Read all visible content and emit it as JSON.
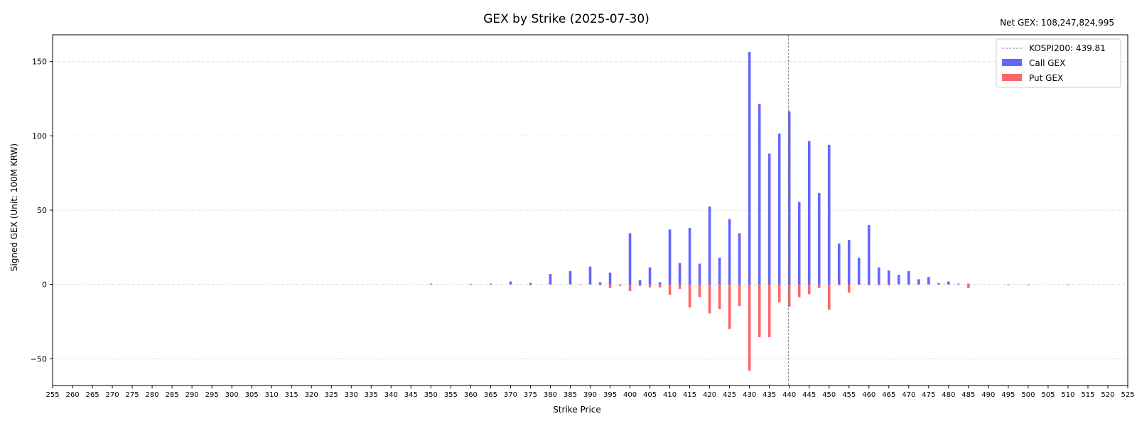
{
  "chart_data": {
    "type": "bar",
    "title": "GEX by Strike (2025-07-30)",
    "annotation": "Net GEX: 108,247,824,995",
    "xlabel": "Strike Price",
    "ylabel": "Signed GEX (Unit: 100M KRW)",
    "xlim": [
      255,
      525
    ],
    "ylim": [
      -68,
      168
    ],
    "x_ticks": [
      255,
      260,
      265,
      270,
      275,
      280,
      285,
      290,
      295,
      300,
      305,
      310,
      315,
      320,
      325,
      330,
      335,
      340,
      345,
      350,
      355,
      360,
      365,
      370,
      375,
      380,
      385,
      390,
      395,
      400,
      405,
      410,
      415,
      420,
      425,
      430,
      435,
      440,
      445,
      450,
      455,
      460,
      465,
      470,
      475,
      480,
      485,
      490,
      495,
      500,
      505,
      510,
      515,
      520,
      525
    ],
    "y_ticks": [
      -50,
      0,
      50,
      100,
      150
    ],
    "y_tick_labels": [
      "−50",
      "0",
      "50",
      "100",
      "150"
    ],
    "grid": "horizontal dashed",
    "legend_position": "top-right",
    "spot_line": {
      "label": "KOSPI200: 439.81",
      "value": 439.81,
      "color": "#808080"
    },
    "series": [
      {
        "name": "Call GEX",
        "color": "#6666ff",
        "points": [
          [
            350,
            0.5
          ],
          [
            360,
            0.4
          ],
          [
            365,
            0.5
          ],
          [
            370,
            2
          ],
          [
            375,
            1
          ],
          [
            380,
            7
          ],
          [
            385,
            9
          ],
          [
            390,
            12
          ],
          [
            392.5,
            1.5
          ],
          [
            395,
            8
          ],
          [
            400,
            34.5
          ],
          [
            402.5,
            3
          ],
          [
            405,
            11.5
          ],
          [
            407.5,
            1.5
          ],
          [
            410,
            37
          ],
          [
            412.5,
            14.5
          ],
          [
            415,
            38
          ],
          [
            417.5,
            14
          ],
          [
            420,
            52.5
          ],
          [
            422.5,
            18
          ],
          [
            425,
            44
          ],
          [
            427.5,
            34.5
          ],
          [
            430,
            156.5
          ],
          [
            432.5,
            121.5
          ],
          [
            435,
            88
          ],
          [
            437.5,
            101.5
          ],
          [
            440,
            116.5
          ],
          [
            442.5,
            55.5
          ],
          [
            445,
            96.5
          ],
          [
            447.5,
            61.5
          ],
          [
            450,
            94
          ],
          [
            452.5,
            27.5
          ],
          [
            455,
            30
          ],
          [
            457.5,
            18
          ],
          [
            460,
            40
          ],
          [
            462.5,
            11.5
          ],
          [
            465,
            9.5
          ],
          [
            467.5,
            6.5
          ],
          [
            470,
            9
          ],
          [
            472.5,
            3.5
          ],
          [
            475,
            5
          ],
          [
            477.5,
            1
          ],
          [
            480,
            2
          ],
          [
            482.5,
            0.5
          ],
          [
            485,
            0.5
          ]
        ]
      },
      {
        "name": "Put GEX",
        "color": "#ff6666",
        "points": [
          [
            375,
            -0.5
          ],
          [
            387.5,
            -0.3
          ],
          [
            392.5,
            -0.5
          ],
          [
            395,
            -2.5
          ],
          [
            397.5,
            -1
          ],
          [
            400,
            -4.5
          ],
          [
            402.5,
            -1
          ],
          [
            405,
            -2
          ],
          [
            407.5,
            -2
          ],
          [
            410,
            -7
          ],
          [
            412.5,
            -3
          ],
          [
            415,
            -15.5
          ],
          [
            417.5,
            -8.5
          ],
          [
            420,
            -19.5
          ],
          [
            422.5,
            -16.5
          ],
          [
            425,
            -30
          ],
          [
            427.5,
            -14.5
          ],
          [
            430,
            -58
          ],
          [
            432.5,
            -35.5
          ],
          [
            435,
            -35.5
          ],
          [
            437.5,
            -12
          ],
          [
            440,
            -15
          ],
          [
            442.5,
            -8.5
          ],
          [
            445,
            -6.5
          ],
          [
            447.5,
            -2.5
          ],
          [
            450,
            -17
          ],
          [
            452.5,
            -0.5
          ],
          [
            455,
            -5.5
          ],
          [
            457.5,
            -0.3
          ],
          [
            460,
            -0.5
          ],
          [
            462.5,
            -0.5
          ],
          [
            465,
            -0.5
          ],
          [
            470,
            -0.3
          ],
          [
            485,
            -2.5
          ],
          [
            495,
            -0.5
          ],
          [
            500,
            -0.4
          ],
          [
            510,
            -0.4
          ]
        ]
      }
    ]
  }
}
